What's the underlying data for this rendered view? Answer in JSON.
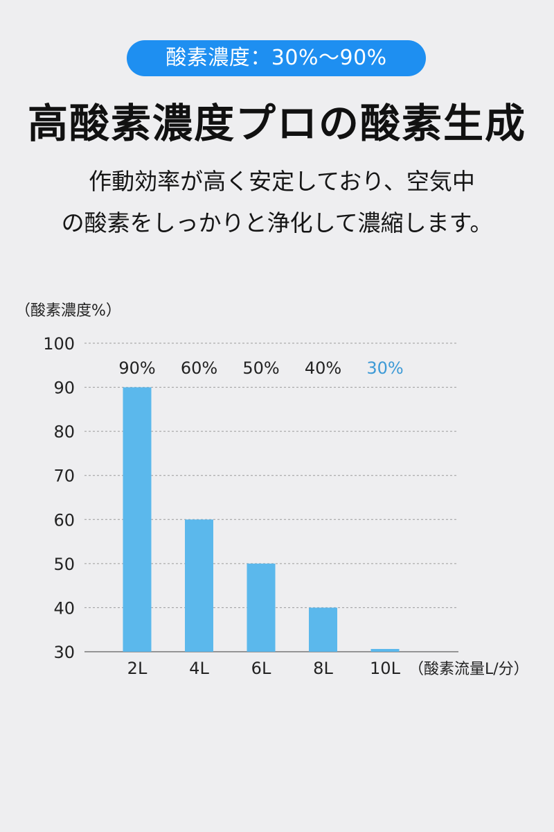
{
  "header": {
    "badge": "酸素濃度：30%〜90%",
    "title": "高酸素濃度プロの酸素生成",
    "desc_line1": "作動効率が高く安定しており、空気中",
    "desc_line2": "の酸素をしっかりと浄化して濃縮します。"
  },
  "colors": {
    "background": "#eeeef0",
    "badge": "#1e8ff1",
    "bar": "#5bb8ec",
    "highlight_label": "#3d9ad6",
    "grid": "#9a9a9a",
    "axis_text": "#222222"
  },
  "chart_data": {
    "type": "bar",
    "ylabel": "（酸素濃度%）",
    "xlabel": "（酸素流量L/分）",
    "categories": [
      "2L",
      "4L",
      "6L",
      "8L",
      "10L"
    ],
    "values": [
      90,
      60,
      50,
      40,
      30
    ],
    "value_labels": [
      "90%",
      "60%",
      "50%",
      "40%",
      "30%"
    ],
    "highlight_index": 4,
    "ylim": [
      30,
      100
    ],
    "yticks": [
      100,
      90,
      80,
      70,
      60,
      50,
      40,
      30
    ],
    "grid": true
  }
}
